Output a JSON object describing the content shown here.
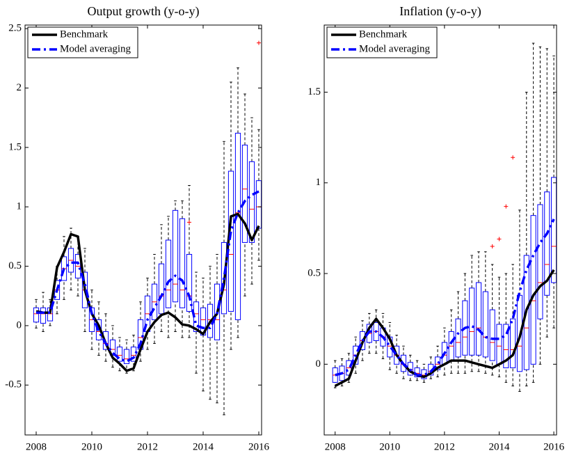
{
  "chart_data": [
    {
      "type": "boxplot",
      "title": "Output growth (y-o-y)",
      "x": [
        2008,
        2008.25,
        2008.5,
        2008.75,
        2009,
        2009.25,
        2009.5,
        2009.75,
        2010,
        2010.25,
        2010.5,
        2010.75,
        2011,
        2011.25,
        2011.5,
        2011.75,
        2012,
        2012.25,
        2012.5,
        2012.75,
        2013,
        2013.25,
        2013.5,
        2013.75,
        2014,
        2014.25,
        2014.5,
        2014.75,
        2015,
        2015.25,
        2015.5,
        2015.75,
        2016
      ],
      "series": [
        {
          "name": "Benchmark",
          "color": "#000000",
          "style": "solid",
          "values": [
            0.12,
            0.11,
            0.11,
            0.49,
            0.62,
            0.77,
            0.75,
            0.3,
            0.1,
            0.0,
            -0.15,
            -0.27,
            -0.32,
            -0.38,
            -0.36,
            -0.2,
            -0.05,
            0.03,
            0.09,
            0.11,
            0.07,
            0.01,
            0.0,
            -0.03,
            -0.07,
            0.03,
            0.1,
            0.35,
            0.92,
            0.94,
            0.86,
            0.72,
            0.84
          ]
        },
        {
          "name": "Model averaging",
          "color": "#0000ff",
          "style": "dashdot",
          "values": [
            0.11,
            0.11,
            0.11,
            0.3,
            0.48,
            0.53,
            0.53,
            0.35,
            0.1,
            -0.05,
            -0.15,
            -0.23,
            -0.28,
            -0.3,
            -0.27,
            -0.15,
            0.05,
            0.15,
            0.25,
            0.37,
            0.42,
            0.38,
            0.25,
            0.0,
            -0.02,
            -0.02,
            0.1,
            0.4,
            0.8,
            0.95,
            1.05,
            1.1,
            1.13
          ]
        }
      ],
      "boxes": {
        "color": "#0000ff",
        "median_color": "#ff0000",
        "low": [
          -0.02,
          -0.05,
          0.0,
          0.1,
          0.22,
          0.3,
          0.25,
          -0.05,
          -0.2,
          -0.25,
          -0.3,
          -0.35,
          -0.38,
          -0.4,
          -0.38,
          -0.3,
          -0.2,
          -0.15,
          -0.05,
          -0.1,
          -0.05,
          -0.1,
          -0.1,
          -0.4,
          -0.55,
          -0.62,
          -0.65,
          -0.75,
          -0.2,
          -0.1,
          0.25,
          0.35,
          0.55
        ],
        "q1": [
          0.03,
          0.02,
          0.04,
          0.22,
          0.38,
          0.45,
          0.4,
          0.15,
          -0.05,
          -0.12,
          -0.2,
          -0.25,
          -0.3,
          -0.32,
          -0.3,
          -0.2,
          -0.05,
          0.05,
          0.1,
          0.15,
          0.2,
          0.15,
          0.12,
          -0.05,
          -0.08,
          -0.1,
          -0.12,
          0.1,
          0.12,
          0.05,
          0.7,
          0.7,
          0.82
        ],
        "median": [
          0.1,
          0.1,
          0.1,
          0.3,
          0.48,
          0.55,
          0.5,
          0.3,
          0.05,
          -0.05,
          -0.15,
          -0.2,
          -0.25,
          -0.28,
          -0.25,
          -0.1,
          0.1,
          0.2,
          0.25,
          0.3,
          0.35,
          0.3,
          0.25,
          0.1,
          0.05,
          0.05,
          0.05,
          0.3,
          0.6,
          0.95,
          1.15,
          0.98,
          1.0
        ],
        "q3": [
          0.15,
          0.15,
          0.15,
          0.38,
          0.58,
          0.65,
          0.6,
          0.45,
          0.15,
          0.05,
          -0.05,
          -0.12,
          -0.18,
          -0.2,
          -0.18,
          0.05,
          0.25,
          0.35,
          0.52,
          0.72,
          0.97,
          0.9,
          0.6,
          0.2,
          0.15,
          0.18,
          0.35,
          0.7,
          1.3,
          1.62,
          1.52,
          1.38,
          1.22
        ],
        "high": [
          0.22,
          0.28,
          0.22,
          0.5,
          0.75,
          0.82,
          0.75,
          0.65,
          0.3,
          0.2,
          0.1,
          0.0,
          -0.1,
          -0.12,
          -0.08,
          0.2,
          0.4,
          0.6,
          0.85,
          0.92,
          1.05,
          1.05,
          1.18,
          0.45,
          0.4,
          0.5,
          0.6,
          1.55,
          2.05,
          2.17,
          1.95,
          1.75,
          1.65
        ]
      },
      "outliers": {
        "color": "#ff0000",
        "x": [
          2013.5,
          2016
        ],
        "y": [
          0.87,
          2.38
        ]
      },
      "xlim": [
        2007.6,
        2016.1
      ],
      "ylim": [
        -0.92,
        2.53
      ],
      "xticks": [
        2008,
        2010,
        2012,
        2014,
        2016
      ],
      "yticks": [
        -0.5,
        0,
        0.5,
        1,
        1.5,
        2,
        2.5
      ],
      "legend": "upper left"
    },
    {
      "type": "boxplot",
      "title": "Inflation (y-o-y)",
      "x": [
        2008,
        2008.25,
        2008.5,
        2008.75,
        2009,
        2009.25,
        2009.5,
        2009.75,
        2010,
        2010.25,
        2010.5,
        2010.75,
        2011,
        2011.25,
        2011.5,
        2011.75,
        2012,
        2012.25,
        2012.5,
        2012.75,
        2013,
        2013.25,
        2013.5,
        2013.75,
        2014,
        2014.25,
        2014.5,
        2014.75,
        2015,
        2015.25,
        2015.5,
        2015.75,
        2016
      ],
      "series": [
        {
          "name": "Benchmark",
          "color": "#000000",
          "style": "solid",
          "values": [
            -0.12,
            -0.1,
            -0.08,
            0.02,
            0.12,
            0.2,
            0.25,
            0.2,
            0.14,
            0.05,
            0.0,
            -0.04,
            -0.06,
            -0.07,
            -0.05,
            -0.02,
            0.0,
            0.02,
            0.02,
            0.02,
            0.01,
            0.0,
            -0.01,
            -0.02,
            0.0,
            0.02,
            0.05,
            0.15,
            0.3,
            0.38,
            0.43,
            0.46,
            0.52
          ]
        },
        {
          "name": "Model averaging",
          "color": "#0000ff",
          "style": "dashdot",
          "values": [
            -0.06,
            -0.05,
            -0.03,
            0.05,
            0.13,
            0.18,
            0.18,
            0.15,
            0.1,
            0.05,
            0.0,
            -0.03,
            -0.06,
            -0.06,
            -0.04,
            0.0,
            0.06,
            0.12,
            0.17,
            0.2,
            0.21,
            0.19,
            0.15,
            0.14,
            0.14,
            0.16,
            0.25,
            0.4,
            0.52,
            0.6,
            0.67,
            0.72,
            0.8
          ]
        }
      ],
      "boxes": {
        "color": "#0000ff",
        "median_color": "#ff0000",
        "low": [
          -0.13,
          -0.12,
          -0.1,
          -0.05,
          0.02,
          0.06,
          0.06,
          0.03,
          -0.03,
          -0.05,
          -0.08,
          -0.09,
          -0.09,
          -0.1,
          -0.08,
          -0.07,
          -0.06,
          -0.05,
          -0.05,
          -0.05,
          -0.04,
          -0.04,
          -0.05,
          -0.06,
          -0.07,
          -0.1,
          -0.12,
          -0.15,
          -0.12,
          -0.1,
          0.0,
          0.15,
          0.2
        ],
        "q1": [
          -0.1,
          -0.09,
          -0.06,
          0.0,
          0.08,
          0.12,
          0.13,
          0.1,
          0.04,
          0.0,
          -0.04,
          -0.06,
          -0.07,
          -0.08,
          -0.06,
          -0.03,
          0.0,
          0.02,
          0.04,
          0.05,
          0.05,
          0.05,
          0.04,
          0.02,
          0.0,
          -0.02,
          -0.02,
          -0.04,
          -0.03,
          0.0,
          0.25,
          0.38,
          0.45
        ],
        "median": [
          -0.06,
          -0.05,
          -0.02,
          0.05,
          0.13,
          0.17,
          0.18,
          0.15,
          0.1,
          0.05,
          0.0,
          -0.03,
          -0.05,
          -0.06,
          -0.04,
          0.0,
          0.05,
          0.1,
          0.12,
          0.15,
          0.18,
          0.2,
          0.15,
          0.12,
          0.1,
          0.08,
          0.08,
          0.1,
          0.2,
          0.35,
          0.45,
          0.55,
          0.65
        ],
        "q3": [
          -0.02,
          -0.01,
          0.02,
          0.1,
          0.18,
          0.22,
          0.23,
          0.2,
          0.15,
          0.1,
          0.05,
          0.01,
          -0.02,
          -0.03,
          0.0,
          0.04,
          0.12,
          0.18,
          0.25,
          0.35,
          0.42,
          0.45,
          0.4,
          0.3,
          0.22,
          0.22,
          0.25,
          0.38,
          0.6,
          0.82,
          0.88,
          0.95,
          1.03
        ],
        "high": [
          0.02,
          0.03,
          0.06,
          0.15,
          0.24,
          0.28,
          0.3,
          0.28,
          0.23,
          0.16,
          0.1,
          0.05,
          0.02,
          0.0,
          0.04,
          0.1,
          0.2,
          0.3,
          0.4,
          0.5,
          0.6,
          0.62,
          0.62,
          0.55,
          0.48,
          0.5,
          0.55,
          0.85,
          1.5,
          1.77,
          1.75,
          1.74,
          1.7
        ]
      },
      "outliers": {
        "color": "#ff0000",
        "x": [
          2013.75,
          2014,
          2014.25,
          2014.5
        ],
        "y": [
          0.65,
          0.69,
          0.87,
          1.14
        ]
      },
      "xlim": [
        2007.6,
        2016.1
      ],
      "ylim": [
        -0.39,
        1.87
      ],
      "xticks": [
        2008,
        2010,
        2012,
        2014,
        2016
      ],
      "yticks": [
        0,
        0.5,
        1,
        1.5
      ],
      "legend": "upper left"
    }
  ]
}
